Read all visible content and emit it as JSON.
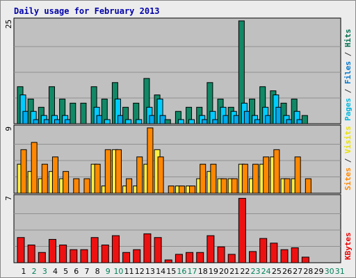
{
  "chart_data": [
    {
      "type": "bar",
      "panel": "hits-files-pages",
      "title": "Daily usage for February 2013",
      "ymax_label": "25",
      "ylim": [
        0,
        25
      ],
      "right_labels": [
        {
          "text": "Hits",
          "color": "#006f4f"
        },
        {
          "text": "Files",
          "color": "#0077cc"
        },
        {
          "text": "Pages",
          "color": "#00b7dd"
        }
      ],
      "separator": " / ",
      "series": [
        {
          "name": "Hits",
          "color": "#118866",
          "values": [
            9,
            6,
            4,
            9,
            6,
            5,
            5,
            9,
            6,
            10,
            4,
            5,
            11,
            7,
            1,
            3,
            4,
            4,
            10,
            6,
            4,
            25,
            6,
            9,
            8,
            5,
            6,
            2,
            0,
            0,
            0
          ]
        },
        {
          "name": "Files",
          "color": "#00ccff",
          "values": [
            7,
            3,
            2,
            2,
            2,
            0,
            0,
            4,
            1,
            6,
            1,
            1,
            4,
            6,
            0,
            1,
            1,
            2,
            3,
            4,
            3,
            5,
            2,
            4,
            7,
            2,
            3,
            0,
            0,
            0,
            0
          ]
        },
        {
          "name": "Pages",
          "color": "#00aaee",
          "values": [
            3,
            1,
            1,
            1,
            1,
            0,
            0,
            2,
            0,
            2,
            0,
            0,
            2,
            2,
            0,
            0,
            0,
            1,
            1,
            2,
            2,
            3,
            1,
            2,
            4,
            1,
            1,
            0,
            0,
            0,
            0
          ]
        }
      ]
    },
    {
      "type": "bar",
      "panel": "visits-sites",
      "ymax_label": "9",
      "ylim": [
        0,
        9
      ],
      "right_labels": [
        {
          "text": "Visits",
          "color": "#e8e000"
        },
        {
          "text": "Sites",
          "color": "#ff8800"
        }
      ],
      "separator": " / ",
      "series": [
        {
          "name": "Visits",
          "color": "#ffee44",
          "values": [
            4,
            3,
            2,
            3,
            2,
            0,
            0,
            4,
            1,
            6,
            1,
            1,
            4,
            6,
            0,
            1,
            1,
            2,
            3,
            2,
            2,
            4,
            2,
            4,
            5,
            2,
            2,
            0,
            0,
            0,
            0
          ]
        },
        {
          "name": "Sites",
          "color": "#ff8800",
          "values": [
            6,
            7,
            4,
            5,
            3,
            2,
            2,
            4,
            6,
            6,
            2,
            5,
            9,
            5,
            1,
            1,
            1,
            4,
            4,
            2,
            2,
            4,
            4,
            5,
            6,
            2,
            5,
            2,
            0,
            0,
            0
          ]
        }
      ]
    },
    {
      "type": "bar",
      "panel": "kbytes",
      "ymax_label": "7",
      "ylim": [
        0,
        7
      ],
      "right_labels": [
        {
          "text": "KBytes",
          "color": "#ee0000"
        }
      ],
      "series": [
        {
          "name": "KBytes",
          "color": "#ee1111",
          "values": [
            2.7,
            1.9,
            1.1,
            2.5,
            1.9,
            1.4,
            1.4,
            2.7,
            1.9,
            2.9,
            1.1,
            1.4,
            3.1,
            2.7,
            0.3,
            0.9,
            1.1,
            1.1,
            2.9,
            1.7,
            0.9,
            6.9,
            1.2,
            2.6,
            2.1,
            1.4,
            1.6,
            0.6,
            0,
            0,
            0
          ]
        }
      ]
    }
  ],
  "x_axis": {
    "days": [
      "1",
      "2",
      "3",
      "4",
      "5",
      "6",
      "7",
      "8",
      "9",
      "10",
      "11",
      "12",
      "13",
      "14",
      "15",
      "16",
      "17",
      "18",
      "19",
      "20",
      "21",
      "22",
      "23",
      "24",
      "25",
      "26",
      "27",
      "28",
      "29",
      "30",
      "31"
    ],
    "weekday_color": "#000000",
    "weekend_color": "#00805a",
    "weekend_days": [
      "2",
      "3",
      "9",
      "10",
      "16",
      "17",
      "23",
      "24",
      "30",
      "31"
    ]
  },
  "colors": {
    "background": "#ececec",
    "plot_background": "#c0c0c0",
    "title": "#0000aa"
  }
}
